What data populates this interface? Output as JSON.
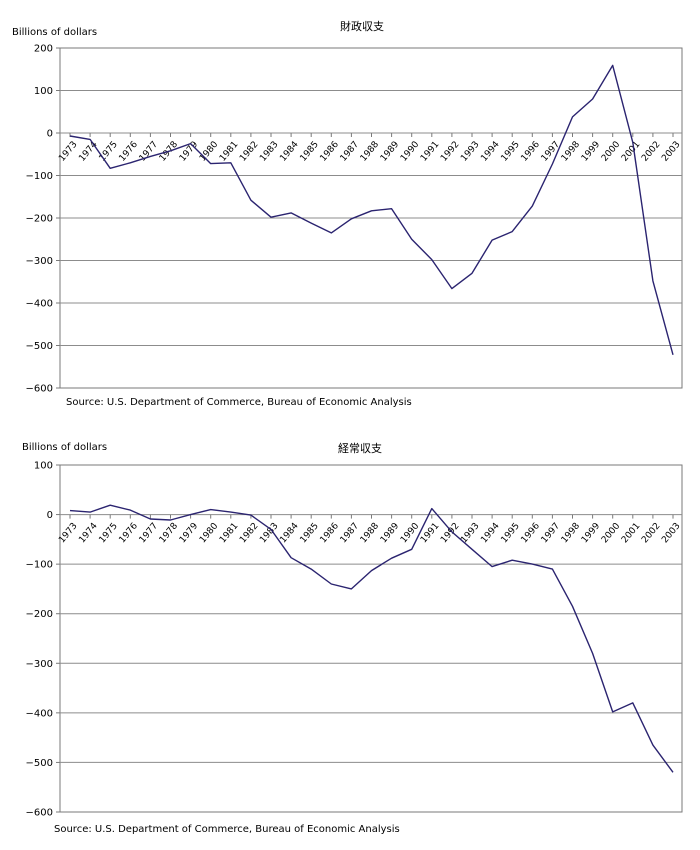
{
  "chart_data": [
    {
      "type": "line",
      "title": "財政収支",
      "ylabel": "Billions of dollars",
      "source": "Source: U.S. Department of Commerce, Bureau of Economic Analysis",
      "ylim": [
        -600,
        200
      ],
      "yticks": [
        200,
        100,
        0,
        -100,
        -200,
        -300,
        -400,
        -500,
        -600
      ],
      "grid": true,
      "x": [
        "1973",
        "1974",
        "1975",
        "1976",
        "1977",
        "1978",
        "1979",
        "1980",
        "1981",
        "1982",
        "1983",
        "1984",
        "1985",
        "1986",
        "1987",
        "1988",
        "1989",
        "1990",
        "1991",
        "1992",
        "1993",
        "1994",
        "1995",
        "1996",
        "1997",
        "1998",
        "1999",
        "2000",
        "2001",
        "2002",
        "2003"
      ],
      "series": [
        {
          "values": [
            -7,
            -15,
            -83,
            -70,
            -55,
            -42,
            -25,
            -72,
            -70,
            -158,
            -198,
            -188,
            -212,
            -235,
            -202,
            -183,
            -178,
            -250,
            -298,
            -366,
            -330,
            -252,
            -232,
            -172,
            -73,
            38,
            80,
            159,
            -22,
            -348,
            -522
          ],
          "color": "#2b2470"
        }
      ]
    },
    {
      "type": "line",
      "title": "経常収支",
      "ylabel": "Billions of dollars",
      "source": "Source: U.S. Department of Commerce, Bureau of Economic Analysis",
      "ylim": [
        -600,
        100
      ],
      "yticks": [
        100,
        0,
        -100,
        -200,
        -300,
        -400,
        -500,
        -600
      ],
      "grid": true,
      "x": [
        "1973",
        "1974",
        "1975",
        "1976",
        "1977",
        "1978",
        "1979",
        "1980",
        "1981",
        "1982",
        "1983",
        "1984",
        "1985",
        "1986",
        "1987",
        "1988",
        "1989",
        "1990",
        "1991",
        "1992",
        "1993",
        "1994",
        "1995",
        "1996",
        "1997",
        "1998",
        "1999",
        "2000",
        "2001",
        "2002",
        "2003"
      ],
      "series": [
        {
          "values": [
            8,
            5,
            19,
            9,
            -9,
            -11,
            0,
            10,
            5,
            -1,
            -30,
            -87,
            -110,
            -140,
            -150,
            -113,
            -88,
            -70,
            12,
            -35,
            -70,
            -105,
            -92,
            -100,
            -110,
            -185,
            -280,
            -398,
            -380,
            -465,
            -520
          ],
          "color": "#2b2470"
        }
      ]
    }
  ]
}
